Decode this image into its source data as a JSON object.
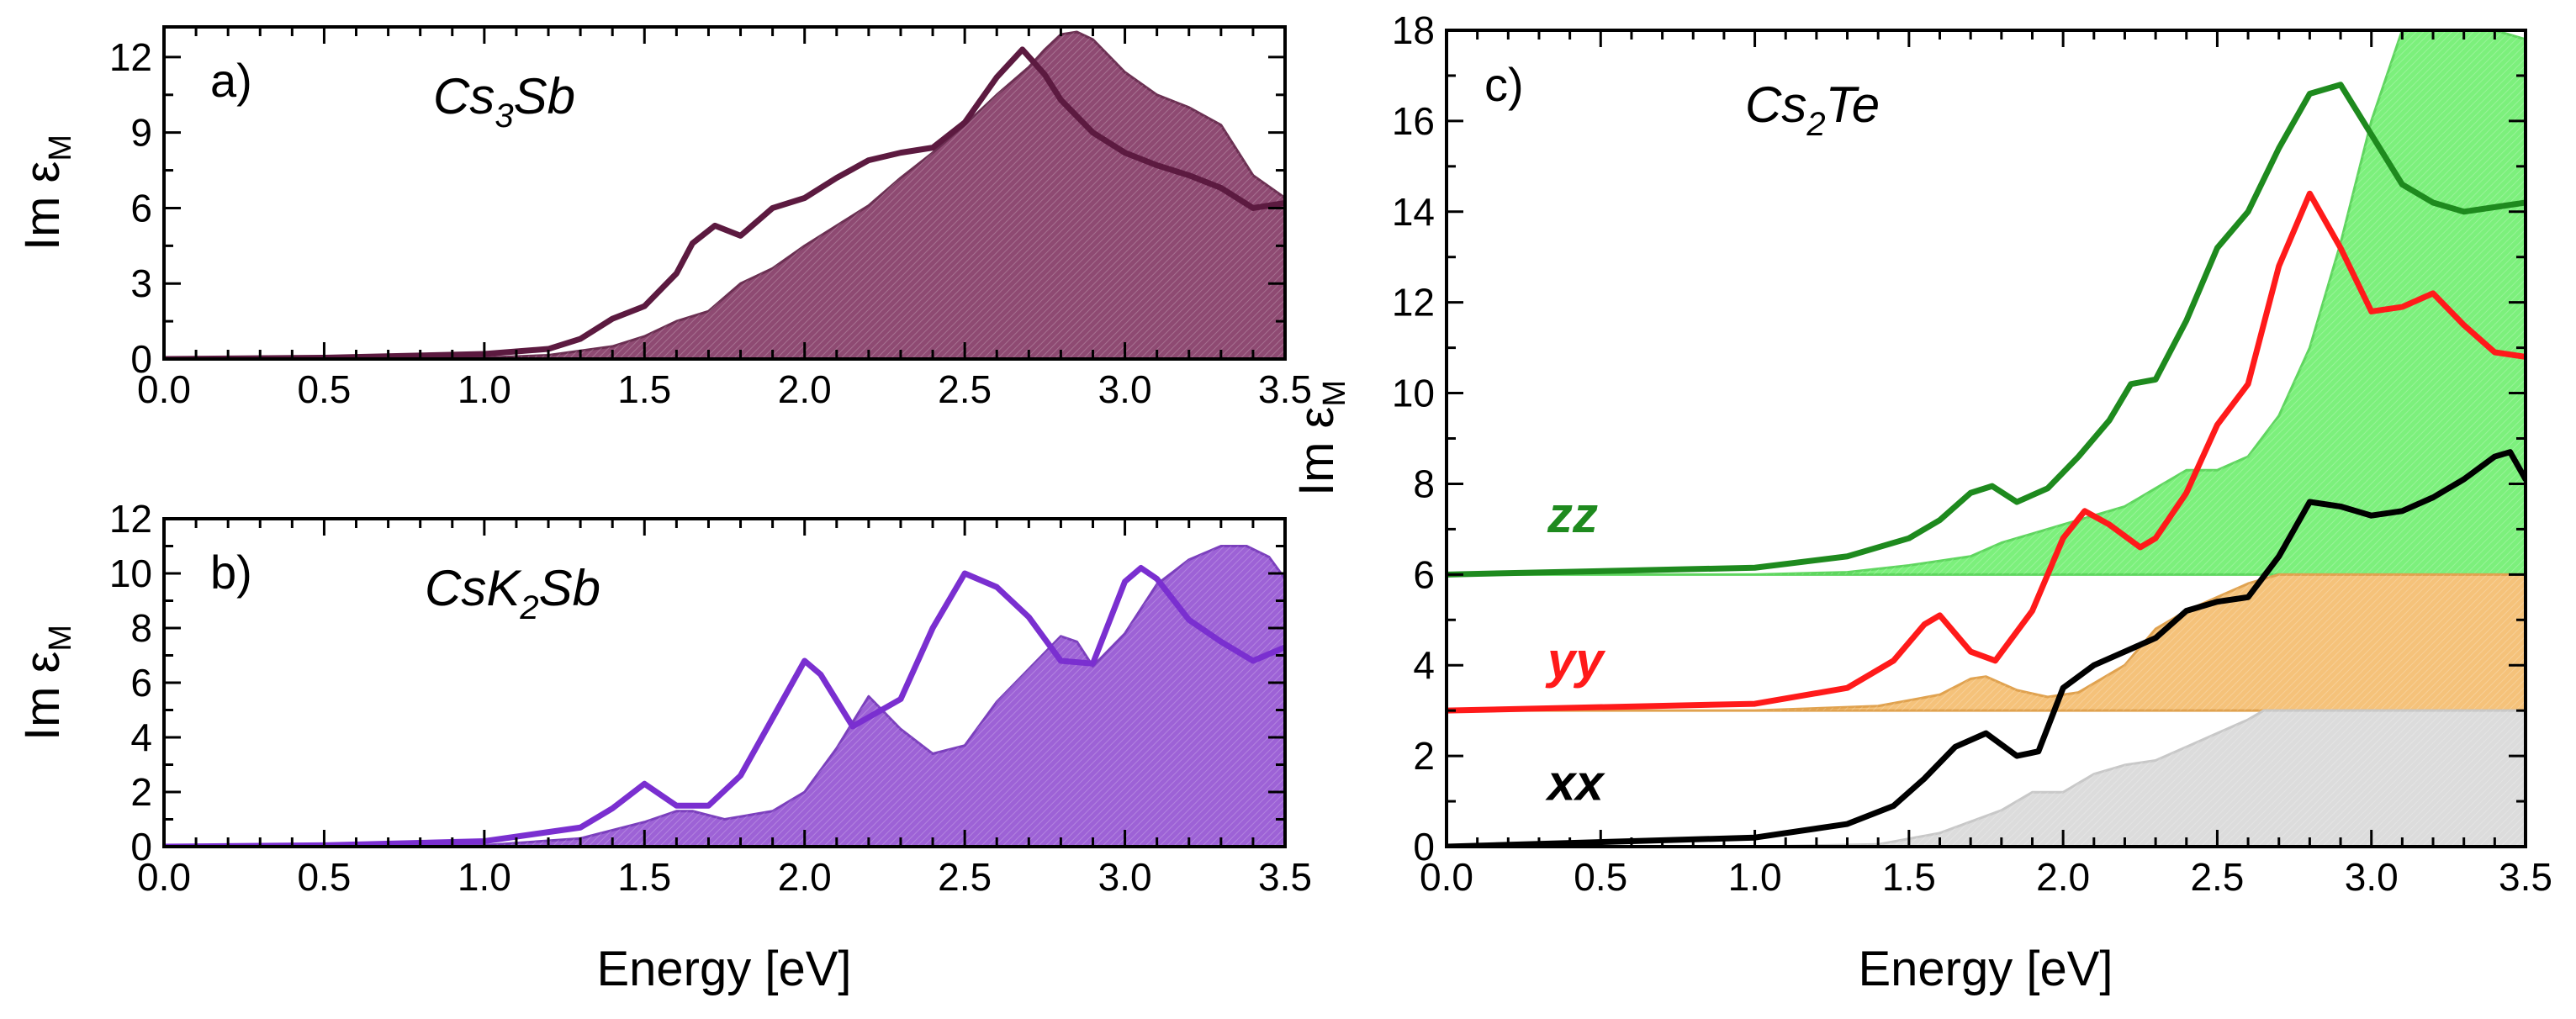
{
  "chart_data": [
    {
      "type": "area",
      "panel": "a)",
      "compound": {
        "base": "Cs",
        "sub1": "3",
        "base2": "Sb",
        "sub2": "",
        "tail": ""
      },
      "ylabel": "Im ε",
      "ylabel_sub": "M",
      "xlabel": "",
      "xlim": [
        0.0,
        3.5
      ],
      "ylim": [
        0,
        13.2
      ],
      "xticks": [
        0.0,
        0.5,
        1.0,
        1.5,
        2.0,
        2.5,
        3.0,
        3.5
      ],
      "xtick_labels": [
        "0.0",
        "0.5",
        "1.0",
        "1.5",
        "2.0",
        "2.5",
        "3.0",
        "3.5"
      ],
      "yticks": [
        0,
        3,
        6,
        9,
        12
      ],
      "ytick_labels": [
        "0",
        "3",
        "6",
        "9",
        "12"
      ],
      "series": [
        {
          "name": "filled",
          "kind": "fill",
          "color": "#8e4a72",
          "edge": "#6b2f52",
          "x": [
            0.0,
            0.5,
            1.0,
            1.2,
            1.4,
            1.5,
            1.6,
            1.7,
            1.8,
            1.9,
            2.0,
            2.1,
            2.2,
            2.3,
            2.4,
            2.5,
            2.6,
            2.7,
            2.75,
            2.8,
            2.85,
            2.9,
            3.0,
            3.1,
            3.2,
            3.3,
            3.4,
            3.5
          ],
          "y": [
            0.0,
            0.0,
            0.05,
            0.15,
            0.5,
            0.9,
            1.5,
            1.9,
            3.0,
            3.6,
            4.5,
            5.3,
            6.1,
            7.2,
            8.2,
            9.3,
            10.5,
            11.6,
            12.3,
            12.9,
            13.0,
            12.7,
            11.4,
            10.5,
            10.0,
            9.3,
            7.3,
            6.4
          ]
        },
        {
          "name": "line",
          "kind": "line",
          "color": "#5c1a40",
          "x": [
            0.0,
            0.5,
            1.0,
            1.2,
            1.3,
            1.4,
            1.5,
            1.6,
            1.65,
            1.72,
            1.8,
            1.9,
            2.0,
            2.1,
            2.2,
            2.3,
            2.4,
            2.5,
            2.6,
            2.68,
            2.75,
            2.8,
            2.9,
            3.0,
            3.1,
            3.2,
            3.3,
            3.4,
            3.5
          ],
          "y": [
            0.0,
            0.05,
            0.2,
            0.4,
            0.8,
            1.6,
            2.1,
            3.4,
            4.6,
            5.3,
            4.9,
            6.0,
            6.4,
            7.2,
            7.9,
            8.2,
            8.4,
            9.4,
            11.2,
            12.3,
            11.3,
            10.3,
            9.0,
            8.2,
            7.7,
            7.3,
            6.8,
            6.0,
            6.2
          ]
        }
      ]
    },
    {
      "type": "area",
      "panel": "b)",
      "compound": {
        "base": "CsK",
        "sub1": "2",
        "base2": "Sb",
        "sub2": "",
        "tail": ""
      },
      "ylabel": "Im ε",
      "ylabel_sub": "M",
      "xlabel": "Energy [eV]",
      "xlim": [
        0.0,
        3.5
      ],
      "ylim": [
        0,
        12
      ],
      "xticks": [
        0.0,
        0.5,
        1.0,
        1.5,
        2.0,
        2.5,
        3.0,
        3.5
      ],
      "xtick_labels": [
        "0.0",
        "0.5",
        "1.0",
        "1.5",
        "2.0",
        "2.5",
        "3.0",
        "3.5"
      ],
      "yticks": [
        0,
        2,
        4,
        6,
        8,
        10,
        12
      ],
      "ytick_labels": [
        "0",
        "2",
        "4",
        "6",
        "8",
        "10",
        "12"
      ],
      "series": [
        {
          "name": "filled",
          "kind": "fill",
          "color": "#9d62d6",
          "edge": "#7b3fbd",
          "x": [
            0.0,
            0.5,
            1.0,
            1.3,
            1.5,
            1.6,
            1.65,
            1.75,
            1.9,
            2.0,
            2.1,
            2.2,
            2.3,
            2.4,
            2.5,
            2.6,
            2.7,
            2.8,
            2.85,
            2.9,
            3.0,
            3.1,
            3.2,
            3.3,
            3.38,
            3.45,
            3.5
          ],
          "y": [
            0.0,
            0.0,
            0.05,
            0.3,
            0.9,
            1.3,
            1.3,
            1.0,
            1.3,
            2.0,
            3.6,
            5.5,
            4.3,
            3.4,
            3.7,
            5.3,
            6.5,
            7.7,
            7.5,
            6.6,
            7.8,
            9.6,
            10.5,
            11.0,
            11.0,
            10.6,
            9.8
          ]
        },
        {
          "name": "line",
          "kind": "line",
          "color": "#7a2fd0",
          "x": [
            0.0,
            0.5,
            1.0,
            1.3,
            1.4,
            1.5,
            1.6,
            1.7,
            1.8,
            1.9,
            2.0,
            2.05,
            2.15,
            2.3,
            2.4,
            2.5,
            2.6,
            2.7,
            2.8,
            2.9,
            3.0,
            3.05,
            3.1,
            3.2,
            3.3,
            3.4,
            3.5
          ],
          "y": [
            0.0,
            0.05,
            0.2,
            0.7,
            1.4,
            2.3,
            1.5,
            1.5,
            2.6,
            4.7,
            6.8,
            6.3,
            4.4,
            5.4,
            8.0,
            10.0,
            9.5,
            8.4,
            6.8,
            6.7,
            9.7,
            10.2,
            9.8,
            8.3,
            7.5,
            6.8,
            7.3
          ]
        }
      ]
    },
    {
      "type": "area",
      "panel": "c)",
      "compound": {
        "base": "Cs",
        "sub1": "2",
        "base2": "Te",
        "sub2": "",
        "tail": ""
      },
      "ylabel": "Im ε",
      "ylabel_sub": "M",
      "xlabel": "Energy [eV]",
      "xlim": [
        0.0,
        3.5
      ],
      "ylim": [
        0,
        18
      ],
      "xticks": [
        0.0,
        0.5,
        1.0,
        1.5,
        2.0,
        2.5,
        3.0,
        3.5
      ],
      "xtick_labels": [
        "0.0",
        "0.5",
        "1.0",
        "1.5",
        "2.0",
        "2.5",
        "3.0",
        "3.5"
      ],
      "yticks": [
        0,
        2,
        4,
        6,
        8,
        10,
        12,
        14,
        16,
        18
      ],
      "ytick_labels": [
        "0",
        "2",
        "4",
        "6",
        "8",
        "10",
        "12",
        "14",
        "16",
        "18"
      ],
      "series_labels": [
        {
          "text": "zz",
          "color": "#1e8a1e",
          "y_value": 7.3
        },
        {
          "text": "yy",
          "color": "#ff1a1a",
          "y_value": 4.1
        },
        {
          "text": "xx",
          "color": "#000000",
          "y_value": 1.4
        }
      ],
      "series": [
        {
          "name": "zz-fill",
          "kind": "fill",
          "color": "#7cf07c",
          "edge": "#5fd65f",
          "baseline": 6,
          "x": [
            0.0,
            1.0,
            1.3,
            1.5,
            1.7,
            1.8,
            1.9,
            2.0,
            2.1,
            2.2,
            2.3,
            2.4,
            2.5,
            2.6,
            2.7,
            2.8,
            2.9,
            3.0,
            3.1,
            3.2,
            3.3,
            3.4,
            3.5
          ],
          "y": [
            6.0,
            6.0,
            6.05,
            6.2,
            6.4,
            6.7,
            6.9,
            7.1,
            7.3,
            7.5,
            7.9,
            8.3,
            8.3,
            8.6,
            9.5,
            11.0,
            13.3,
            16.0,
            18.0,
            18.0,
            18.0,
            18.0,
            17.8
          ]
        },
        {
          "name": "yy-fill",
          "kind": "fill",
          "color": "#f5c27a",
          "edge": "#e0a24f",
          "baseline": 3,
          "x": [
            0.0,
            1.0,
            1.4,
            1.6,
            1.7,
            1.75,
            1.85,
            1.95,
            2.05,
            2.2,
            2.3,
            2.4,
            2.5,
            2.6,
            2.7,
            3.5
          ],
          "y": [
            3.0,
            3.0,
            3.1,
            3.35,
            3.7,
            3.75,
            3.45,
            3.3,
            3.4,
            4.0,
            4.8,
            5.2,
            5.5,
            5.8,
            6.0,
            6.0
          ]
        },
        {
          "name": "xx-fill",
          "kind": "fill",
          "color": "#dcdcdc",
          "edge": "#c8c8c8",
          "baseline": 0,
          "x": [
            0.0,
            1.0,
            1.4,
            1.6,
            1.8,
            1.9,
            2.0,
            2.1,
            2.2,
            2.3,
            2.4,
            2.5,
            2.6,
            2.65,
            3.5
          ],
          "y": [
            0.0,
            0.0,
            0.05,
            0.3,
            0.8,
            1.2,
            1.2,
            1.6,
            1.8,
            1.9,
            2.2,
            2.5,
            2.8,
            3.0,
            3.0
          ]
        },
        {
          "name": "zz",
          "kind": "line",
          "color": "#1e8a1e",
          "x": [
            0.0,
            1.0,
            1.3,
            1.5,
            1.6,
            1.7,
            1.77,
            1.85,
            1.95,
            2.05,
            2.15,
            2.22,
            2.3,
            2.4,
            2.5,
            2.6,
            2.7,
            2.8,
            2.9,
            3.0,
            3.1,
            3.2,
            3.3,
            3.4,
            3.5
          ],
          "y": [
            6.0,
            6.15,
            6.4,
            6.8,
            7.2,
            7.8,
            7.95,
            7.6,
            7.9,
            8.6,
            9.4,
            10.2,
            10.3,
            11.6,
            13.2,
            14.0,
            15.4,
            16.6,
            16.8,
            15.7,
            14.6,
            14.2,
            14.0,
            14.1,
            14.2
          ]
        },
        {
          "name": "yy",
          "kind": "line",
          "color": "#ff1a1a",
          "x": [
            0.0,
            1.0,
            1.3,
            1.45,
            1.55,
            1.6,
            1.7,
            1.78,
            1.9,
            2.0,
            2.07,
            2.15,
            2.25,
            2.3,
            2.4,
            2.5,
            2.6,
            2.7,
            2.8,
            2.9,
            3.0,
            3.1,
            3.2,
            3.3,
            3.4,
            3.5
          ],
          "y": [
            3.0,
            3.15,
            3.5,
            4.1,
            4.9,
            5.1,
            4.3,
            4.1,
            5.2,
            6.8,
            7.4,
            7.1,
            6.6,
            6.8,
            7.8,
            9.3,
            10.2,
            12.8,
            14.4,
            13.2,
            11.8,
            11.9,
            12.2,
            11.5,
            10.9,
            10.8
          ]
        },
        {
          "name": "xx",
          "kind": "line",
          "color": "#000000",
          "x": [
            0.0,
            1.0,
            1.3,
            1.45,
            1.55,
            1.65,
            1.75,
            1.85,
            1.92,
            2.0,
            2.1,
            2.2,
            2.3,
            2.4,
            2.5,
            2.6,
            2.7,
            2.8,
            2.9,
            3.0,
            3.1,
            3.2,
            3.3,
            3.4,
            3.45,
            3.5
          ],
          "y": [
            0.0,
            0.2,
            0.5,
            0.9,
            1.5,
            2.2,
            2.5,
            2.0,
            2.1,
            3.5,
            4.0,
            4.3,
            4.6,
            5.2,
            5.4,
            5.5,
            6.4,
            7.6,
            7.5,
            7.3,
            7.4,
            7.7,
            8.1,
            8.6,
            8.7,
            8.1
          ]
        }
      ]
    }
  ]
}
